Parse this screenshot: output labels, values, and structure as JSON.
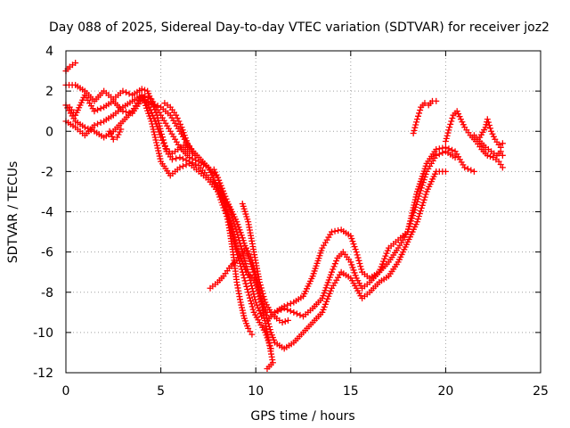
{
  "chart_data": {
    "type": "scatter",
    "title": "Day 088 of 2025, Sidereal Day-to-day VTEC variation (SDTVAR) for receiver joz2",
    "xlabel": "GPS time / hours",
    "ylabel": "SDTVAR / TECUs",
    "xlim": [
      0,
      25
    ],
    "ylim": [
      -12,
      4
    ],
    "x_ticks": [
      "0",
      "5",
      "10",
      "15",
      "20",
      "25"
    ],
    "y_ticks": [
      "4",
      "2",
      "0",
      "-2",
      "-4",
      "-6",
      "-8",
      "-10",
      "-12"
    ],
    "grid": true,
    "marker": "plus",
    "color": "#ff0000",
    "series": [
      {
        "points": [
          [
            0.0,
            3.0
          ],
          [
            0.2,
            3.2
          ],
          [
            0.5,
            3.4
          ]
        ]
      },
      {
        "points": [
          [
            0.0,
            2.3
          ],
          [
            0.5,
            2.3
          ],
          [
            1.0,
            2.0
          ],
          [
            1.5,
            1.5
          ],
          [
            2.0,
            2.0
          ],
          [
            2.5,
            1.6
          ],
          [
            3.0,
            2.0
          ],
          [
            3.5,
            1.8
          ],
          [
            4.0,
            2.1
          ],
          [
            4.3,
            2.0
          ],
          [
            4.5,
            1.5
          ],
          [
            4.8,
            0.8
          ],
          [
            5.0,
            0.0
          ],
          [
            5.3,
            -1.0
          ],
          [
            5.6,
            -1.4
          ],
          [
            6.0,
            -1.3
          ],
          [
            6.5,
            -1.5
          ],
          [
            7.0,
            -1.7
          ],
          [
            7.5,
            -2.3
          ],
          [
            8.0,
            -2.7
          ],
          [
            8.3,
            -3.3
          ],
          [
            8.6,
            -3.8
          ],
          [
            9.0,
            -5.0
          ],
          [
            9.3,
            -6.0
          ],
          [
            9.6,
            -7.0
          ],
          [
            10.0,
            -8.5
          ],
          [
            10.3,
            -9.2
          ],
          [
            10.6,
            -9.4
          ],
          [
            11.0,
            -9.0
          ],
          [
            11.5,
            -8.8
          ],
          [
            12.0,
            -9.0
          ],
          [
            12.5,
            -9.2
          ],
          [
            13.0,
            -8.8
          ],
          [
            13.5,
            -8.3
          ],
          [
            14.0,
            -7.0
          ],
          [
            14.3,
            -6.3
          ],
          [
            14.6,
            -6.0
          ],
          [
            15.0,
            -6.5
          ],
          [
            15.3,
            -7.3
          ],
          [
            15.6,
            -7.8
          ],
          [
            16.0,
            -7.5
          ],
          [
            16.5,
            -7.0
          ],
          [
            17.0,
            -6.5
          ],
          [
            17.5,
            -5.8
          ],
          [
            18.0,
            -5.0
          ],
          [
            18.5,
            -3.5
          ],
          [
            19.0,
            -2.0
          ],
          [
            19.5,
            -1.2
          ],
          [
            20.0,
            -1.0
          ],
          [
            20.5,
            -1.3
          ]
        ]
      },
      {
        "points": [
          [
            0.0,
            0.5
          ],
          [
            0.5,
            0.2
          ],
          [
            1.0,
            -0.2
          ],
          [
            1.5,
            0.3
          ],
          [
            2.0,
            0.5
          ],
          [
            2.5,
            0.8
          ],
          [
            3.0,
            1.2
          ],
          [
            3.5,
            1.5
          ],
          [
            4.0,
            1.8
          ],
          [
            4.5,
            1.6
          ],
          [
            5.0,
            0.8
          ],
          [
            5.5,
            0.0
          ],
          [
            6.0,
            -0.8
          ],
          [
            6.5,
            -1.3
          ],
          [
            7.0,
            -1.5
          ],
          [
            7.5,
            -1.8
          ],
          [
            8.0,
            -2.3
          ],
          [
            8.5,
            -3.5
          ],
          [
            9.0,
            -4.5
          ],
          [
            9.3,
            -5.3
          ],
          [
            9.6,
            -6.2
          ],
          [
            9.9,
            -7.0
          ],
          [
            10.2,
            -8.0
          ],
          [
            10.5,
            -9.0
          ],
          [
            10.8,
            -10.0
          ],
          [
            11.0,
            -10.5
          ],
          [
            11.5,
            -10.8
          ],
          [
            12.0,
            -10.5
          ],
          [
            12.5,
            -10.0
          ],
          [
            13.0,
            -9.5
          ],
          [
            13.5,
            -9.0
          ],
          [
            14.0,
            -7.8
          ],
          [
            14.5,
            -7.0
          ],
          [
            15.0,
            -7.3
          ],
          [
            15.3,
            -7.8
          ],
          [
            15.6,
            -8.3
          ],
          [
            16.0,
            -8.0
          ],
          [
            16.5,
            -7.5
          ],
          [
            17.0,
            -7.2
          ],
          [
            17.5,
            -6.5
          ],
          [
            18.0,
            -5.5
          ],
          [
            18.5,
            -4.5
          ],
          [
            19.0,
            -3.0
          ],
          [
            19.5,
            -2.0
          ],
          [
            20.0,
            -2.0
          ]
        ]
      },
      {
        "points": [
          [
            0.2,
            1.2
          ],
          [
            0.5,
            0.8
          ],
          [
            1.0,
            1.8
          ],
          [
            1.5,
            1.0
          ],
          [
            2.0,
            1.2
          ],
          [
            2.5,
            1.5
          ],
          [
            3.0,
            1.0
          ],
          [
            3.5,
            0.9
          ],
          [
            4.0,
            1.6
          ],
          [
            4.5,
            1.4
          ],
          [
            5.0,
            1.2
          ],
          [
            5.5,
            0.8
          ],
          [
            6.0,
            0.0
          ],
          [
            6.5,
            -0.8
          ],
          [
            7.0,
            -1.3
          ],
          [
            7.5,
            -1.8
          ],
          [
            8.0,
            -2.8
          ],
          [
            8.5,
            -4.0
          ],
          [
            9.0,
            -5.8
          ],
          [
            9.5,
            -7.0
          ],
          [
            10.0,
            -7.5
          ],
          [
            10.3,
            -8.5
          ],
          [
            10.6,
            -9.0
          ],
          [
            11.0,
            -9.0
          ],
          [
            11.5,
            -8.7
          ],
          [
            12.0,
            -8.5
          ],
          [
            12.5,
            -8.2
          ],
          [
            13.0,
            -7.2
          ],
          [
            13.5,
            -5.8
          ],
          [
            14.0,
            -5.0
          ],
          [
            14.5,
            -4.9
          ],
          [
            15.0,
            -5.2
          ],
          [
            15.3,
            -6.0
          ],
          [
            15.6,
            -7.0
          ],
          [
            16.0,
            -7.3
          ],
          [
            16.5,
            -7.0
          ],
          [
            17.0,
            -5.8
          ],
          [
            17.5,
            -5.4
          ],
          [
            18.0,
            -5.0
          ],
          [
            18.5,
            -3.0
          ],
          [
            19.0,
            -1.6
          ],
          [
            19.5,
            -0.9
          ],
          [
            20.0,
            -0.8
          ],
          [
            20.5,
            -1.0
          ],
          [
            21.0,
            -1.8
          ],
          [
            21.5,
            -2.0
          ]
        ]
      },
      {
        "points": [
          [
            0.0,
            1.3
          ],
          [
            0.5,
            0.5
          ],
          [
            1.0,
            0.2
          ],
          [
            1.5,
            0.0
          ],
          [
            2.0,
            -0.3
          ],
          [
            2.5,
            0.0
          ],
          [
            3.0,
            0.5
          ],
          [
            3.5,
            1.0
          ],
          [
            4.0,
            1.8
          ],
          [
            4.5,
            0.5
          ],
          [
            5.0,
            -1.5
          ],
          [
            5.5,
            -2.2
          ],
          [
            6.0,
            -1.8
          ],
          [
            6.5,
            -1.6
          ],
          [
            7.0,
            -2.0
          ],
          [
            7.5,
            -2.4
          ],
          [
            8.0,
            -3.0
          ],
          [
            8.3,
            -3.8
          ],
          [
            8.6,
            -4.5
          ],
          [
            9.0,
            -6.0
          ],
          [
            9.3,
            -7.0
          ],
          [
            9.6,
            -8.0
          ],
          [
            9.9,
            -9.0
          ],
          [
            10.2,
            -9.5
          ],
          [
            10.5,
            -10.0
          ],
          [
            10.8,
            -10.8
          ]
        ]
      },
      {
        "points": [
          [
            7.8,
            -1.9
          ],
          [
            8.0,
            -2.3
          ],
          [
            8.2,
            -3.0
          ],
          [
            8.4,
            -3.8
          ],
          [
            8.6,
            -4.8
          ],
          [
            8.8,
            -6.0
          ],
          [
            9.0,
            -7.5
          ],
          [
            9.2,
            -8.5
          ],
          [
            9.4,
            -9.3
          ],
          [
            9.6,
            -9.8
          ],
          [
            9.8,
            -10.1
          ]
        ]
      },
      {
        "points": [
          [
            7.6,
            -7.8
          ],
          [
            8.0,
            -7.5
          ],
          [
            8.3,
            -7.2
          ],
          [
            8.6,
            -6.8
          ],
          [
            8.9,
            -6.5
          ],
          [
            9.2,
            -6.2
          ],
          [
            9.5,
            -5.8
          ],
          [
            9.8,
            -6.4
          ],
          [
            10.1,
            -7.5
          ],
          [
            10.4,
            -9.0
          ],
          [
            10.7,
            -10.5
          ],
          [
            10.9,
            -11.5
          ],
          [
            10.6,
            -11.8
          ]
        ]
      },
      {
        "points": [
          [
            9.3,
            -3.6
          ],
          [
            9.6,
            -4.5
          ],
          [
            9.9,
            -6.0
          ],
          [
            10.2,
            -7.5
          ],
          [
            10.5,
            -8.5
          ],
          [
            10.8,
            -9.0
          ],
          [
            11.1,
            -9.3
          ],
          [
            11.4,
            -9.5
          ],
          [
            11.7,
            -9.4
          ]
        ]
      },
      {
        "points": [
          [
            18.3,
            -0.1
          ],
          [
            18.5,
            0.6
          ],
          [
            18.7,
            1.2
          ],
          [
            18.9,
            1.4
          ],
          [
            19.1,
            1.3
          ],
          [
            19.3,
            1.5
          ],
          [
            19.5,
            1.5
          ]
        ]
      },
      {
        "points": [
          [
            20.0,
            -0.5
          ],
          [
            20.2,
            0.2
          ],
          [
            20.4,
            0.8
          ],
          [
            20.6,
            1.0
          ],
          [
            20.8,
            0.6
          ],
          [
            21.0,
            0.2
          ],
          [
            21.3,
            -0.2
          ],
          [
            21.6,
            -0.5
          ],
          [
            21.9,
            -0.9
          ],
          [
            22.2,
            -1.2
          ],
          [
            22.5,
            -1.3
          ],
          [
            22.8,
            -1.5
          ],
          [
            23.0,
            -1.8
          ]
        ]
      },
      {
        "points": [
          [
            21.8,
            -0.3
          ],
          [
            22.1,
            0.2
          ],
          [
            22.2,
            0.6
          ],
          [
            22.4,
            0.0
          ],
          [
            22.6,
            -0.4
          ],
          [
            22.9,
            -0.8
          ],
          [
            23.0,
            -0.6
          ]
        ]
      },
      {
        "points": [
          [
            21.5,
            -0.2
          ],
          [
            21.8,
            -0.5
          ],
          [
            22.1,
            -0.8
          ],
          [
            22.4,
            -1.0
          ],
          [
            22.7,
            -1.2
          ],
          [
            22.9,
            -1.0
          ],
          [
            23.0,
            -1.2
          ]
        ]
      },
      {
        "points": [
          [
            4.1,
            1.7
          ],
          [
            4.4,
            1.2
          ],
          [
            4.7,
            0.5
          ],
          [
            5.0,
            -0.3
          ],
          [
            5.3,
            -0.9
          ],
          [
            5.6,
            -1.1
          ],
          [
            5.9,
            -0.9
          ],
          [
            6.2,
            -0.7
          ],
          [
            6.5,
            -1.0
          ],
          [
            6.8,
            -1.2
          ]
        ]
      },
      {
        "points": [
          [
            5.2,
            1.4
          ],
          [
            5.5,
            1.2
          ],
          [
            5.8,
            0.8
          ],
          [
            6.1,
            0.2
          ],
          [
            6.4,
            -0.6
          ],
          [
            6.7,
            -1.0
          ]
        ]
      },
      {
        "points": [
          [
            2.3,
            0.0
          ],
          [
            2.5,
            -0.4
          ],
          [
            2.7,
            -0.3
          ],
          [
            2.9,
            0.1
          ]
        ]
      }
    ]
  }
}
